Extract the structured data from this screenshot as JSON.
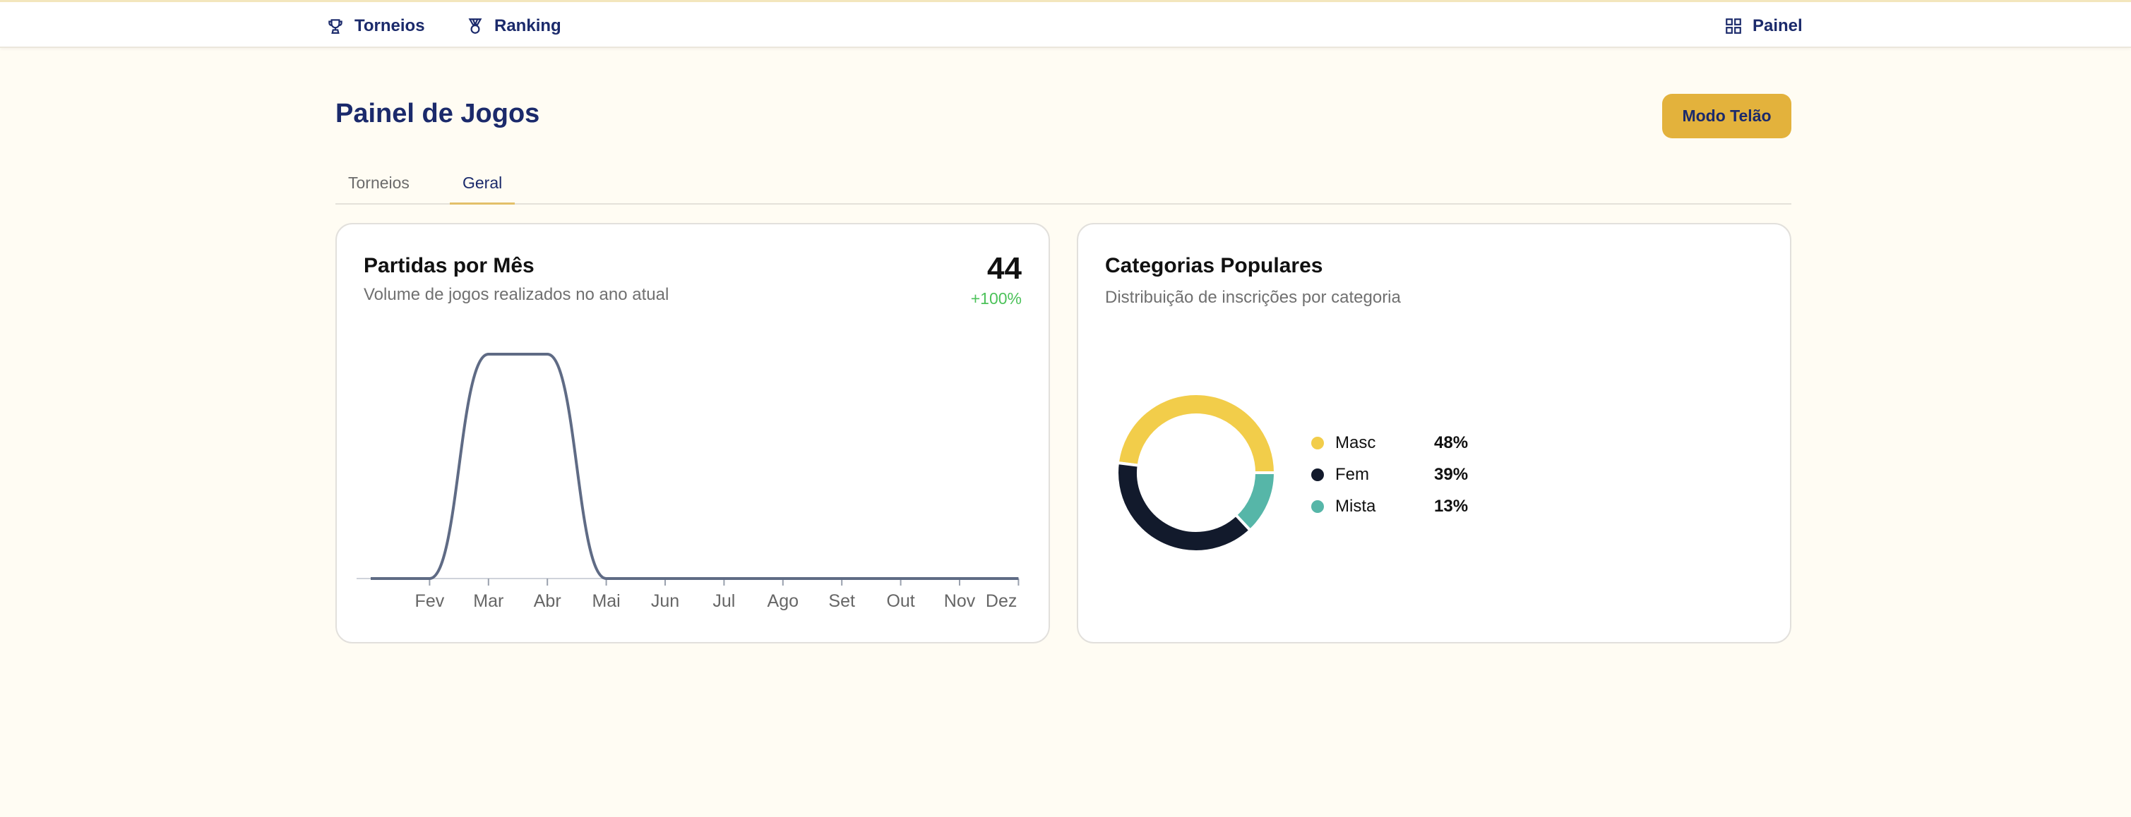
{
  "nav": {
    "torneios": "Torneios",
    "ranking": "Ranking",
    "painel": "Painel"
  },
  "page": {
    "title": "Painel de Jogos",
    "mode_button": "Modo Telão"
  },
  "tabs": [
    {
      "label": "Torneios",
      "active": false
    },
    {
      "label": "Geral",
      "active": true
    }
  ],
  "matches_card": {
    "title": "Partidas por Mês",
    "subtitle": "Volume de jogos realizados no ano atual",
    "total": "44",
    "delta": "+100%"
  },
  "categories_card": {
    "title": "Categorias Populares",
    "subtitle": "Distribuição de inscrições por categoria"
  },
  "colors": {
    "navy": "#1b2a6b",
    "accent": "#e3b23c",
    "line": "#5f6b85",
    "masc": "#f2cd4a",
    "fem": "#121a2c",
    "mista": "#56b6a8"
  },
  "chart_data": [
    {
      "type": "line",
      "title": "Partidas por Mês",
      "leading_value": 0,
      "categories": [
        "Fev",
        "Mar",
        "Abr",
        "Mai",
        "Jun",
        "Jul",
        "Ago",
        "Set",
        "Out",
        "Nov",
        "Dez"
      ],
      "values": [
        0,
        22,
        22,
        0,
        0,
        0,
        0,
        0,
        0,
        0,
        0
      ],
      "ylim": [
        0,
        22
      ]
    },
    {
      "type": "pie",
      "title": "Categorias Populares",
      "labels": [
        "Masc",
        "Fem",
        "Mista"
      ],
      "values": [
        48,
        39,
        13
      ],
      "display": [
        "48%",
        "39%",
        "13%"
      ]
    }
  ]
}
